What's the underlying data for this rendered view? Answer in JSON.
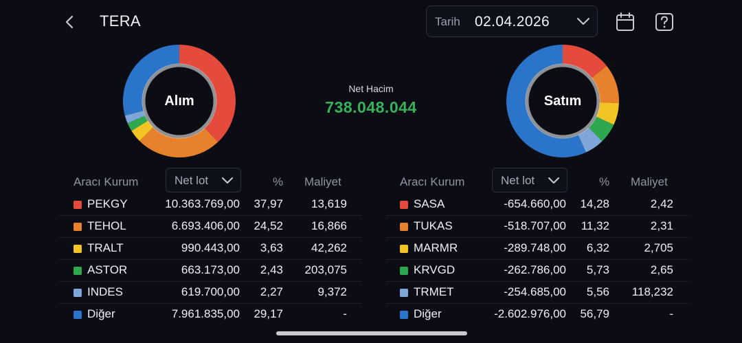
{
  "header": {
    "title": "TERA",
    "date_label": "Tarih",
    "date_value": "02.04.2026"
  },
  "summary": {
    "net_label": "Net Hacim",
    "net_value": "738.048.044"
  },
  "colors": {
    "red": "#e54b3d",
    "orange": "#e8812c",
    "yellow": "#f2c525",
    "green": "#2ea84f",
    "lightblue": "#7ea6d8",
    "blue": "#2a75c9",
    "net_positive": "#34b35a"
  },
  "columns": {
    "broker": "Aracı Kurum",
    "net_lot": "Net lot",
    "pct": "%",
    "cost": "Maliyet"
  },
  "buy": {
    "label": "Alım",
    "rows": [
      {
        "name": "PEKGY",
        "lot": "10.363.769,00",
        "pct": "37,97",
        "cost": "13,619",
        "color": "#e54b3d"
      },
      {
        "name": "TEHOL",
        "lot": "6.693.406,00",
        "pct": "24,52",
        "cost": "16,866",
        "color": "#e8812c"
      },
      {
        "name": "TRALT",
        "lot": "990.443,00",
        "pct": "3,63",
        "cost": "42,262",
        "color": "#f2c525"
      },
      {
        "name": "ASTOR",
        "lot": "663.173,00",
        "pct": "2,43",
        "cost": "203,075",
        "color": "#2ea84f"
      },
      {
        "name": "INDES",
        "lot": "619.700,00",
        "pct": "2,27",
        "cost": "9,372",
        "color": "#7ea6d8"
      },
      {
        "name": "Diğer",
        "lot": "7.961.835,00",
        "pct": "29,17",
        "cost": "-",
        "color": "#2a75c9"
      }
    ]
  },
  "sell": {
    "label": "Satım",
    "rows": [
      {
        "name": "SASA",
        "lot": "-654.660,00",
        "pct": "14,28",
        "cost": "2,42",
        "color": "#e54b3d"
      },
      {
        "name": "TUKAS",
        "lot": "-518.707,00",
        "pct": "11,32",
        "cost": "2,31",
        "color": "#e8812c"
      },
      {
        "name": "MARMR",
        "lot": "-289.748,00",
        "pct": "6,32",
        "cost": "2,705",
        "color": "#f2c525"
      },
      {
        "name": "KRVGD",
        "lot": "-262.786,00",
        "pct": "5,73",
        "cost": "2,65",
        "color": "#2ea84f"
      },
      {
        "name": "TRMET",
        "lot": "-254.685,00",
        "pct": "5,56",
        "cost": "118,232",
        "color": "#7ea6d8"
      },
      {
        "name": "Diğer",
        "lot": "-2.602.976,00",
        "pct": "56,79",
        "cost": "-",
        "color": "#2a75c9"
      }
    ]
  }
}
